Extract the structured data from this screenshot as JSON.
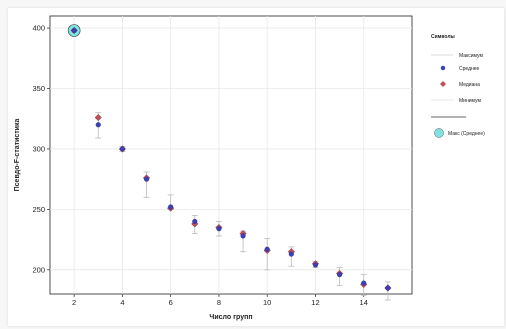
{
  "chart_data": {
    "type": "scatter",
    "title": "",
    "xlabel": "Число групп",
    "ylabel": "Псевдо-F-статистика",
    "xlim": [
      1,
      16
    ],
    "ylim": [
      180,
      410
    ],
    "x_ticks": [
      2,
      4,
      6,
      8,
      10,
      12,
      14
    ],
    "y_ticks": [
      200,
      250,
      300,
      350,
      400
    ],
    "grid": true,
    "legend_position": "right",
    "legend": {
      "title": "Символы",
      "items": [
        "Максимум",
        "Среднее",
        "Медиана",
        "Минимум",
        "Макс (Среднее)"
      ]
    },
    "colors": {
      "mean": "#3b3fb8",
      "median": "#c0505a",
      "max_mean": "#7fe3e3",
      "whisker": "#bbbbbb",
      "grid": "#e8e8e8"
    },
    "series": [
      {
        "name": "Максимум",
        "x": [
          2,
          3,
          4,
          5,
          6,
          7,
          8,
          9,
          10,
          11,
          12,
          13,
          14,
          15
        ],
        "values": [
          399,
          330,
          302,
          281,
          262,
          245,
          240,
          232,
          226,
          219,
          207,
          202,
          196,
          190
        ]
      },
      {
        "name": "Среднее",
        "x": [
          2,
          3,
          4,
          5,
          6,
          7,
          8,
          9,
          10,
          11,
          12,
          13,
          14,
          15
        ],
        "values": [
          398,
          320,
          300,
          275,
          252,
          240,
          234,
          228,
          217,
          213,
          204,
          196,
          189,
          185
        ]
      },
      {
        "name": "Медиана",
        "x": [
          2,
          3,
          4,
          5,
          6,
          7,
          8,
          9,
          10,
          11,
          12,
          13,
          14,
          15
        ],
        "values": [
          398,
          326,
          300,
          276,
          251,
          238,
          235,
          230,
          216,
          215,
          205,
          197,
          188,
          185
        ]
      },
      {
        "name": "Минимум",
        "x": [
          2,
          3,
          4,
          5,
          6,
          7,
          8,
          9,
          10,
          11,
          12,
          13,
          14,
          15
        ],
        "values": [
          397,
          309,
          298,
          260,
          250,
          230,
          228,
          215,
          200,
          203,
          202,
          187,
          179,
          175
        ]
      },
      {
        "name": "Макс (Среднее)",
        "x": [
          2
        ],
        "values": [
          398
        ]
      }
    ]
  }
}
